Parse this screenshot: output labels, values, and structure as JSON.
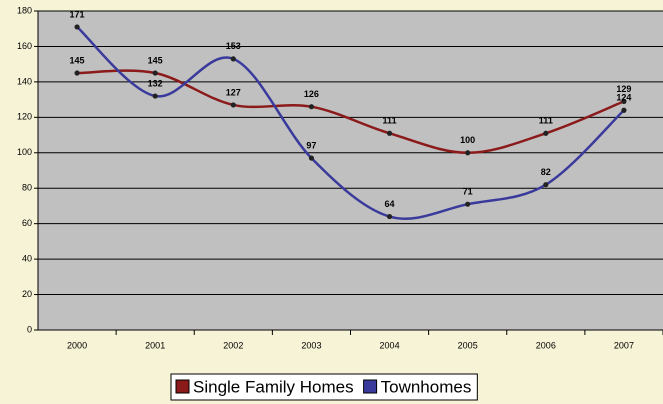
{
  "chart_data": {
    "type": "line",
    "categories": [
      "2000",
      "2001",
      "2002",
      "2003",
      "2004",
      "2005",
      "2006",
      "2007"
    ],
    "series": [
      {
        "name": "Single Family Homes",
        "color": "#8b1a1a",
        "values": [
          145,
          145,
          127,
          126,
          111,
          100,
          111,
          129
        ]
      },
      {
        "name": "Townhomes",
        "color": "#3a3a9c",
        "values": [
          171,
          132,
          153,
          97,
          64,
          71,
          82,
          124
        ]
      }
    ],
    "ylim": [
      0,
      180
    ],
    "yticks": [
      0,
      20,
      40,
      60,
      80,
      100,
      120,
      140,
      160,
      180
    ],
    "grid": true,
    "legend": "bottom"
  }
}
